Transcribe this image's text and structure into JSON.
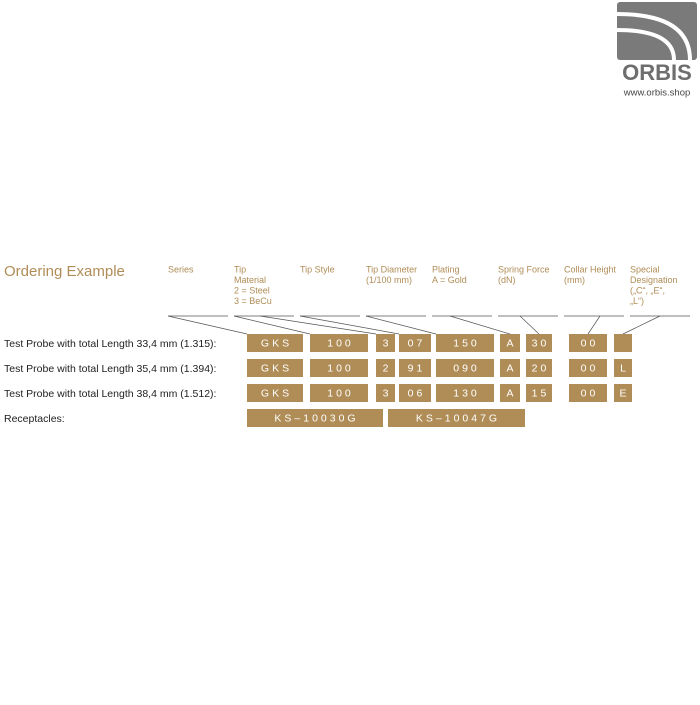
{
  "logo": {
    "name": "ORBIS",
    "url": "www.orbis.shop"
  },
  "title": "Ordering Example",
  "headers": [
    [
      "Series"
    ],
    [
      "Tip",
      "Material",
      "2 = Steel",
      "3 = BeCu"
    ],
    [
      "Tip Style"
    ],
    [
      "Tip Diameter",
      "(1/100 mm)"
    ],
    [
      "Plating",
      "A = Gold"
    ],
    [
      "Spring Force",
      "(dN)"
    ],
    [
      "Collar Height",
      "(mm)"
    ],
    [
      "Special",
      "Designation",
      "(„C“, „E“,",
      "„L“)"
    ]
  ],
  "rows": [
    {
      "label": "Test Probe with total Length 33,4 mm (1.315):",
      "cells": [
        "GKS",
        "100",
        "3",
        "07",
        "150",
        "A",
        "30",
        "00"
      ]
    },
    {
      "label": "Test Probe with total Length 35,4 mm (1.394):",
      "cells": [
        "GKS",
        "100",
        "2",
        "91",
        "090",
        "A",
        "20",
        "00",
        "L"
      ]
    },
    {
      "label": "Test Probe with total Length 38,4 mm (1.512):",
      "cells": [
        "GKS",
        "100",
        "3",
        "06",
        "130",
        "A",
        "15",
        "00",
        "E"
      ]
    }
  ],
  "receptacles": {
    "label": "Receptacles:",
    "cells": [
      "KS–10030G",
      "KS–10047G"
    ]
  }
}
